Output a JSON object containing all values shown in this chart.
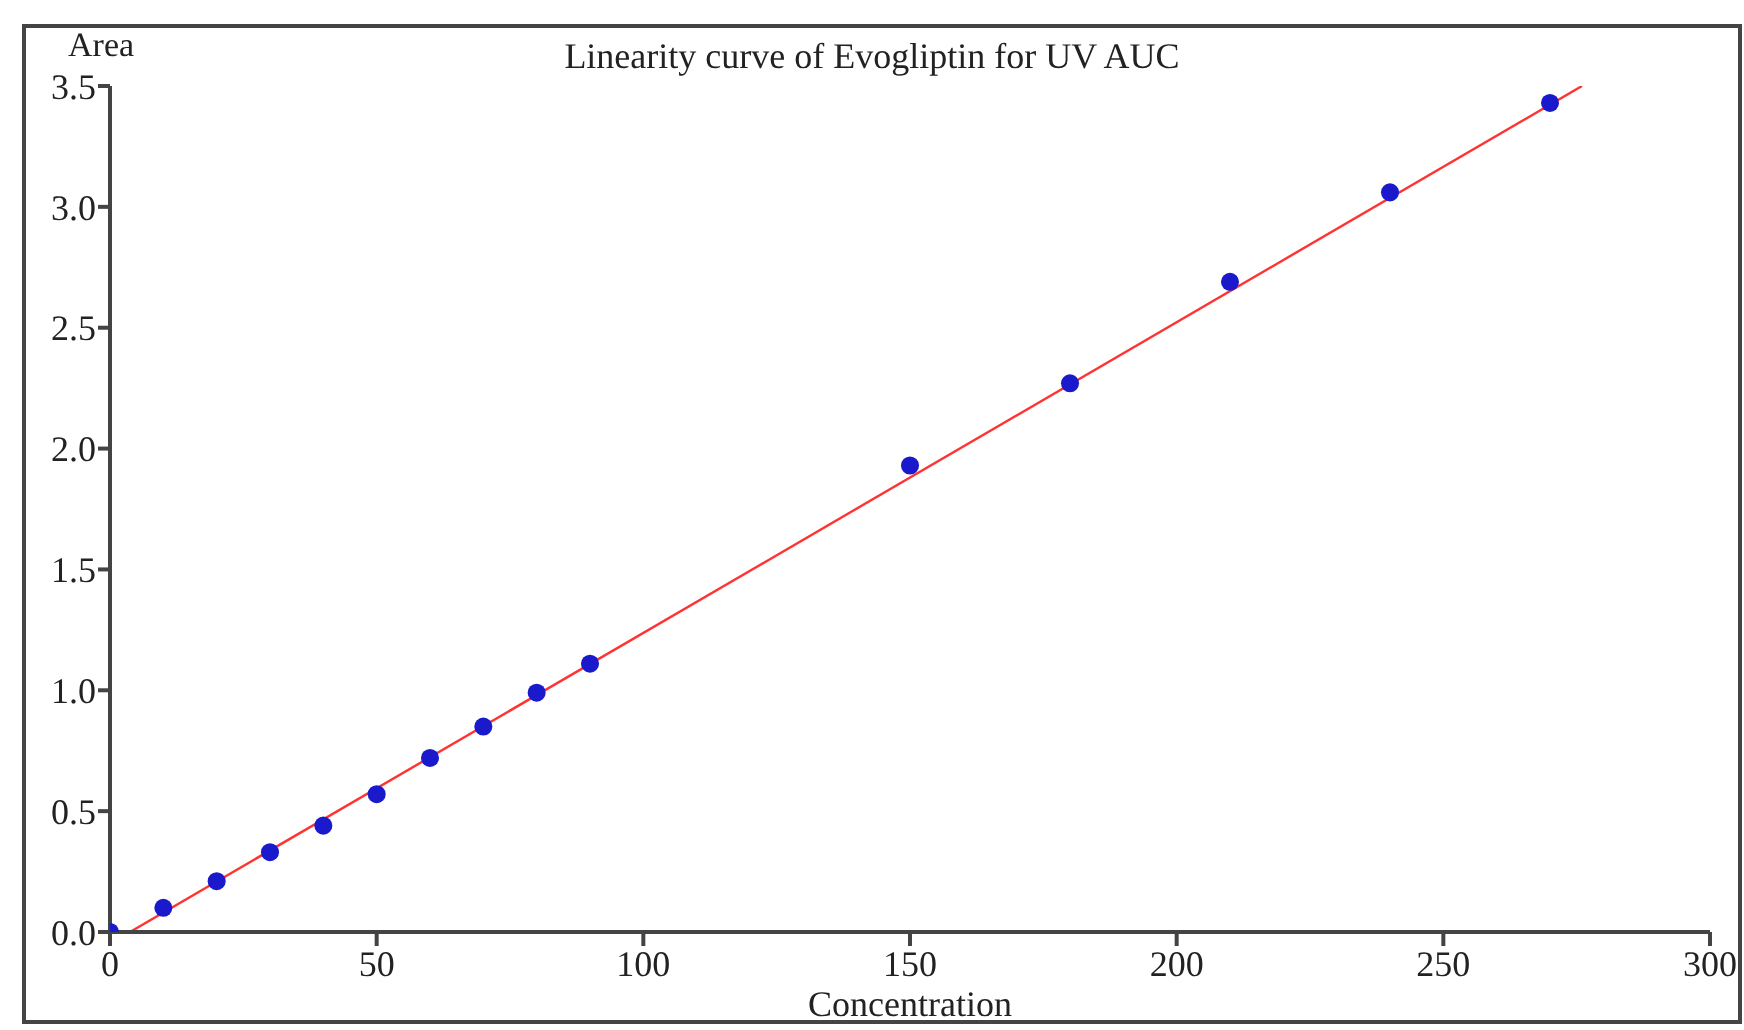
{
  "chart_data": {
    "type": "scatter",
    "title": "Linearity curve of Evogliptin for UV AUC",
    "xlabel": "Concentration",
    "ylabel": "Area",
    "xlim": [
      0,
      300
    ],
    "xticks": [
      0,
      50,
      100,
      150,
      200,
      250,
      300
    ],
    "ylim": [
      0,
      3.5
    ],
    "yticks": [
      {
        "value": 0,
        "label": "0.0"
      },
      0.5,
      {
        "value": 1,
        "label": "1.0"
      },
      1.5,
      {
        "value": 2,
        "label": "2.0"
      },
      2.5,
      {
        "value": 3,
        "label": "3.0"
      },
      3.5
    ],
    "series": [
      {
        "marker": "circle",
        "color": "#1a1acc",
        "x": [
          0,
          10,
          20,
          30,
          40,
          50,
          60,
          70,
          80,
          90,
          150,
          180,
          210,
          240,
          270
        ],
        "values": [
          0,
          0.1,
          0.21,
          0.33,
          0.44,
          0.57,
          0.72,
          0.85,
          0.99,
          1.11,
          1.93,
          2.27,
          2.69,
          3.06,
          3.43
        ]
      },
      {
        "type": "line",
        "marker": "none",
        "color": "#ff3333",
        "x": [
          3.75,
          276
        ],
        "values": [
          0,
          3.5
        ]
      }
    ]
  }
}
